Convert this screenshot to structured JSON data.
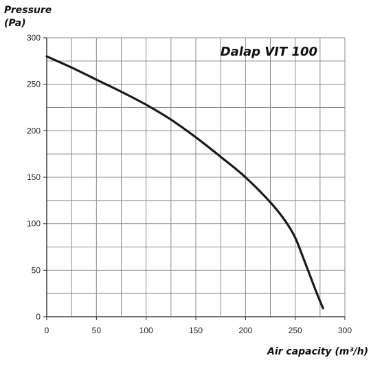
{
  "chart_data": {
    "type": "line",
    "title": "Dalap VIT 100",
    "ylabel_line1": "Pressure",
    "ylabel_line2": "(Pa)",
    "xlabel": "Air capacity (m³/h)",
    "xlim": [
      0,
      300
    ],
    "ylim": [
      0,
      300
    ],
    "xticks": [
      0,
      50,
      100,
      150,
      200,
      250,
      300
    ],
    "yticks": [
      0,
      50,
      100,
      150,
      200,
      250,
      300
    ],
    "grid": true,
    "series": [
      {
        "color": "#1a1a1a",
        "x": [
          0,
          25,
          50,
          75,
          100,
          125,
          150,
          175,
          200,
          225,
          240,
          250,
          260,
          270,
          278
        ],
        "y": [
          280,
          268,
          255,
          242,
          228,
          212,
          193,
          172,
          150,
          123,
          103,
          85,
          58,
          30,
          9
        ]
      }
    ]
  }
}
